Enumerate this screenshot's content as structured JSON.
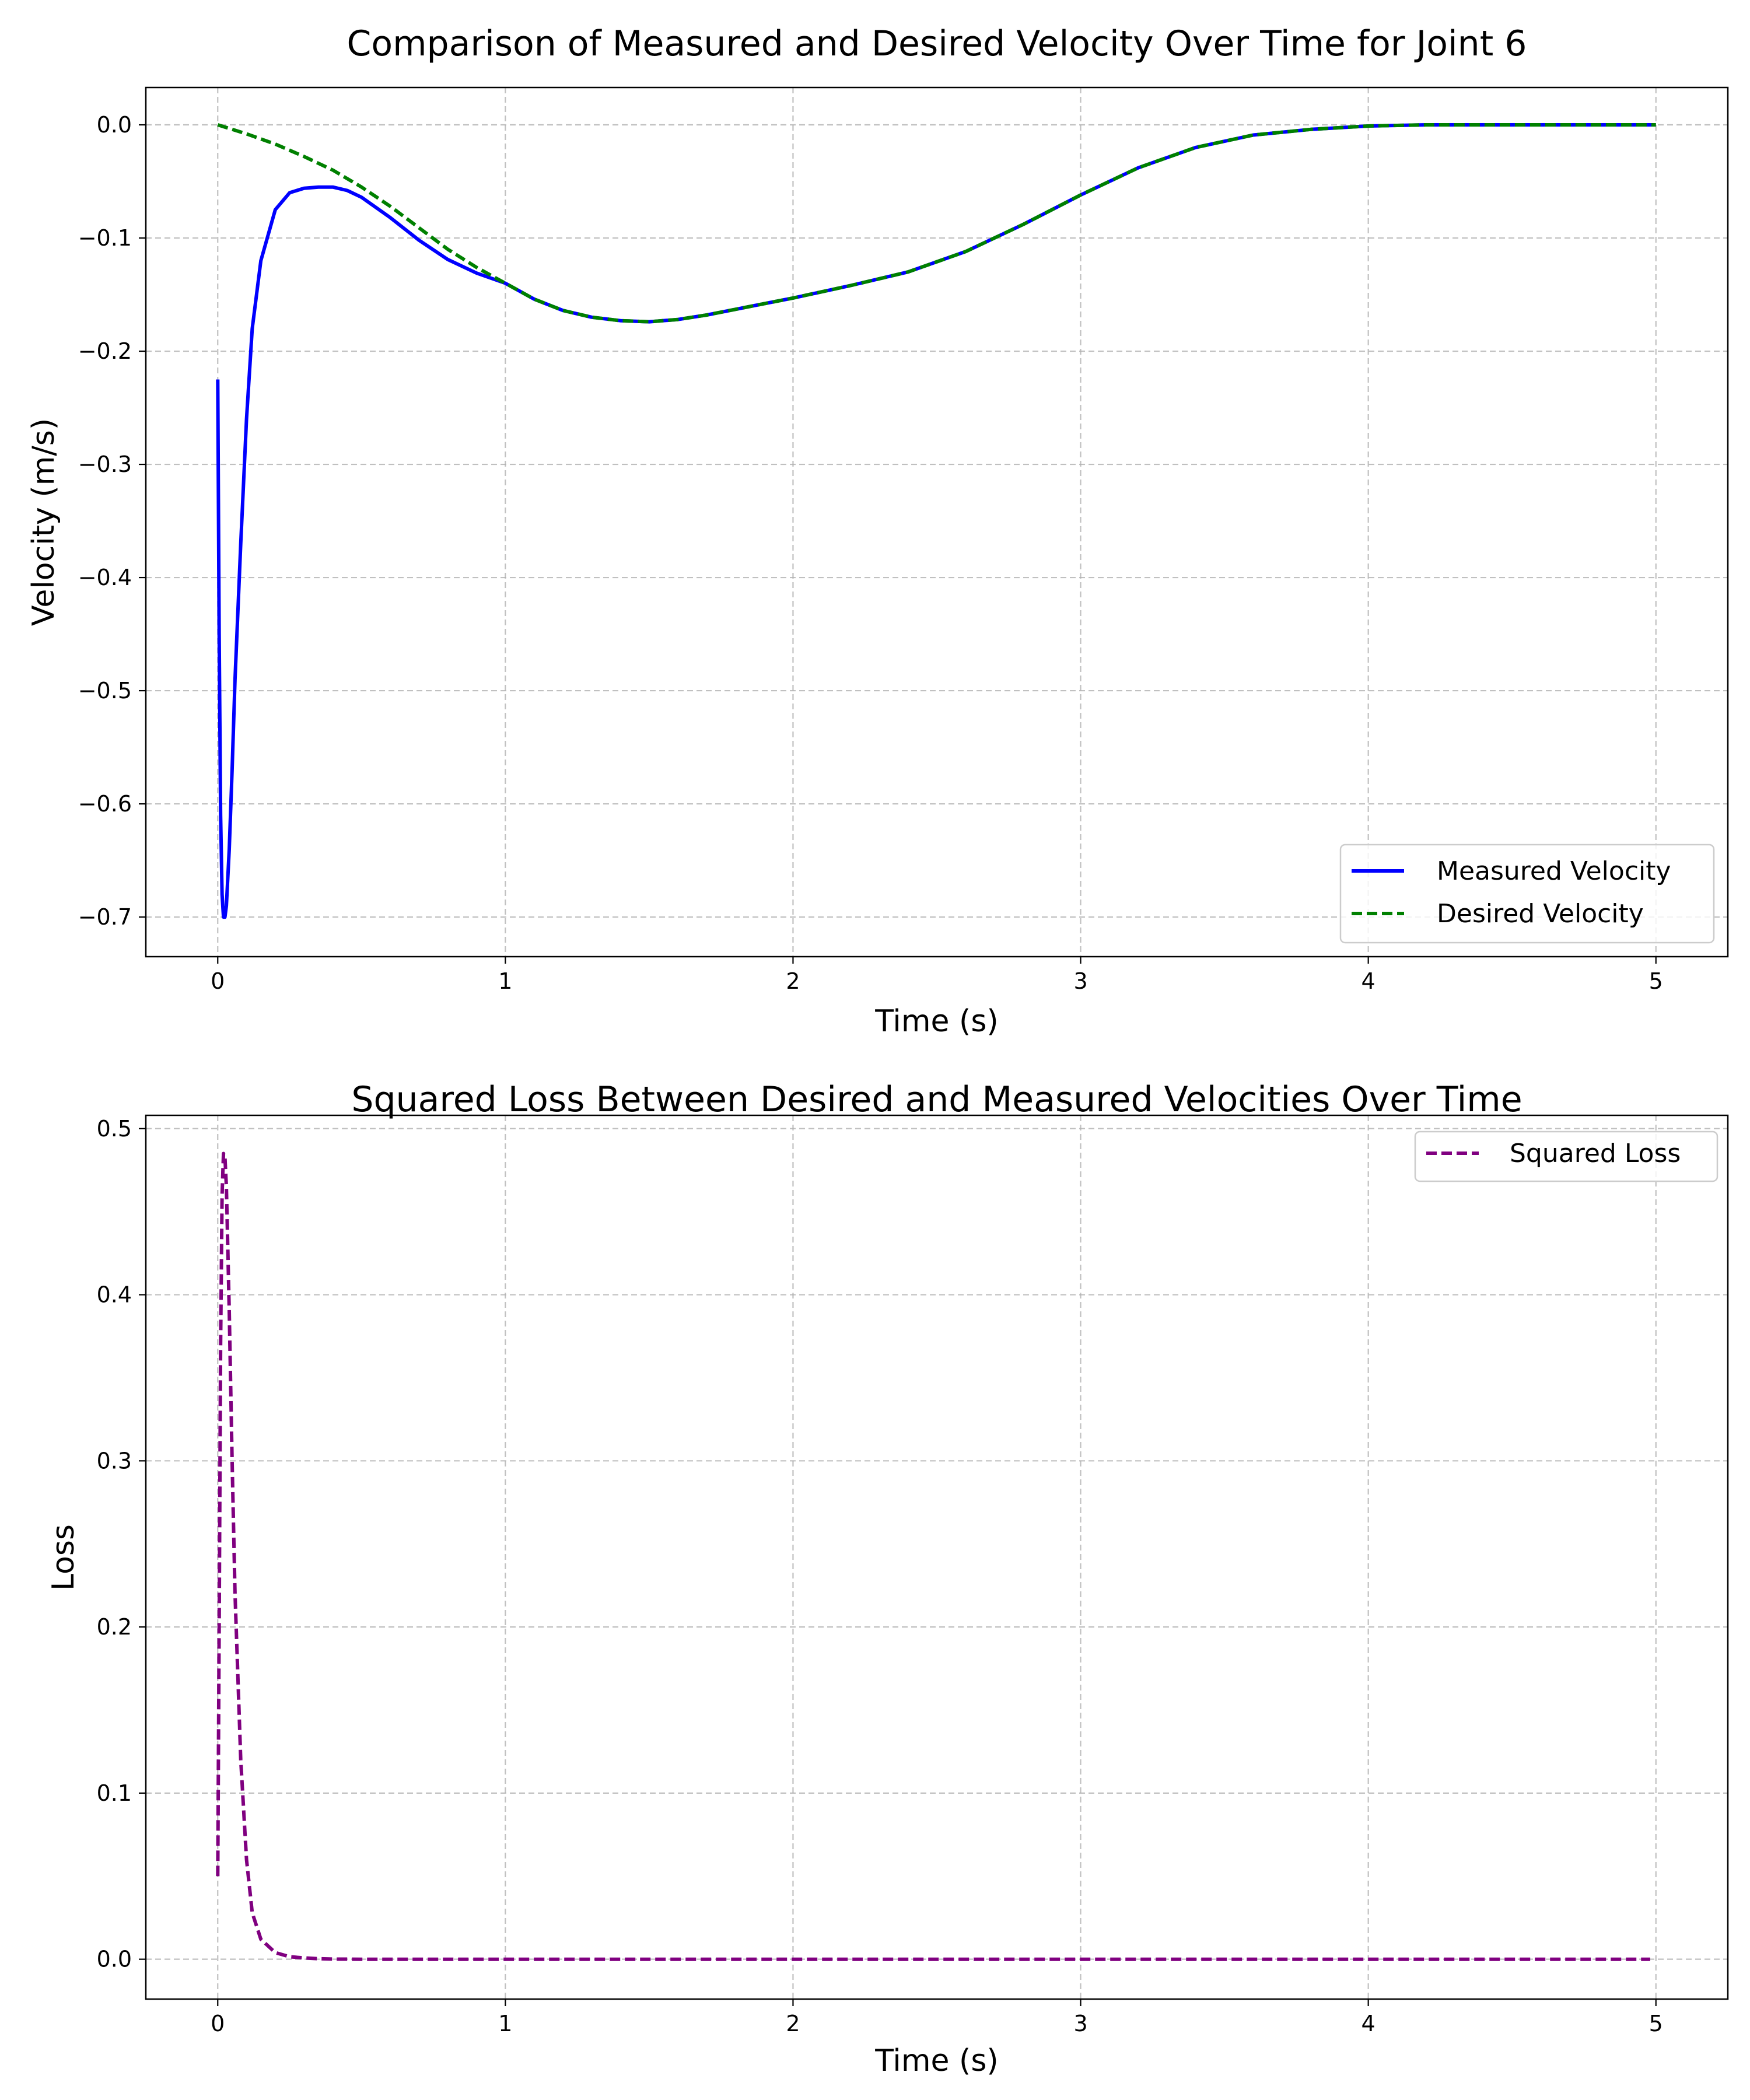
{
  "chart_data": [
    {
      "type": "line",
      "title": "Comparison of Measured and Desired Velocity Over Time for Joint 6",
      "xlabel": "Time (s)",
      "ylabel": "Velocity (m/s)",
      "xlim": [
        -0.25,
        5.25
      ],
      "ylim": [
        -0.735,
        0.033
      ],
      "xticks": [
        0,
        1,
        2,
        3,
        4,
        5
      ],
      "yticks": [
        0.0,
        -0.1,
        -0.2,
        -0.3,
        -0.4,
        -0.5,
        -0.6,
        -0.7
      ],
      "xtick_labels": [
        "0",
        "1",
        "2",
        "3",
        "4",
        "5"
      ],
      "ytick_labels": [
        "0.0",
        "−0.1",
        "−0.2",
        "−0.3",
        "−0.4",
        "−0.5",
        "−0.6",
        "−0.7"
      ],
      "grid": true,
      "legend_position": "lower-right",
      "series": [
        {
          "name": "Measured Velocity",
          "color": "#0000ff",
          "style": "solid",
          "x": [
            0,
            0.005,
            0.01,
            0.015,
            0.02,
            0.025,
            0.03,
            0.04,
            0.05,
            0.06,
            0.08,
            0.1,
            0.12,
            0.15,
            0.2,
            0.25,
            0.3,
            0.35,
            0.4,
            0.45,
            0.5,
            0.6,
            0.7,
            0.8,
            0.9,
            1.0,
            1.1,
            1.2,
            1.3,
            1.4,
            1.5,
            1.6,
            1.7,
            1.8,
            1.9,
            2.0,
            2.2,
            2.4,
            2.6,
            2.8,
            3.0,
            3.2,
            3.4,
            3.6,
            3.8,
            4.0,
            4.2,
            4.4,
            4.6,
            4.8,
            5.0
          ],
          "y": [
            -0.225,
            -0.45,
            -0.61,
            -0.68,
            -0.7,
            -0.7,
            -0.69,
            -0.64,
            -0.57,
            -0.49,
            -0.37,
            -0.26,
            -0.18,
            -0.12,
            -0.075,
            -0.06,
            -0.056,
            -0.055,
            -0.055,
            -0.058,
            -0.064,
            -0.082,
            -0.102,
            -0.119,
            -0.131,
            -0.14,
            -0.154,
            -0.164,
            -0.17,
            -0.173,
            -0.174,
            -0.172,
            -0.168,
            -0.163,
            -0.158,
            -0.153,
            -0.142,
            -0.13,
            -0.112,
            -0.088,
            -0.062,
            -0.038,
            -0.02,
            -0.009,
            -0.004,
            -0.001,
            0.0,
            0.0,
            0.0,
            0.0,
            0.0
          ]
        },
        {
          "name": "Desired Velocity",
          "color": "#008000",
          "style": "dashed",
          "x": [
            0,
            0.1,
            0.2,
            0.3,
            0.4,
            0.5,
            0.6,
            0.7,
            0.8,
            0.9,
            1.0,
            1.1,
            1.2,
            1.3,
            1.4,
            1.5,
            1.6,
            1.7,
            1.8,
            1.9,
            2.0,
            2.2,
            2.4,
            2.6,
            2.8,
            3.0,
            3.2,
            3.4,
            3.6,
            3.8,
            4.0,
            4.2,
            4.4,
            4.6,
            4.8,
            5.0
          ],
          "y": [
            0.0,
            -0.008,
            -0.017,
            -0.028,
            -0.04,
            -0.055,
            -0.072,
            -0.091,
            -0.11,
            -0.126,
            -0.14,
            -0.154,
            -0.164,
            -0.17,
            -0.173,
            -0.174,
            -0.172,
            -0.168,
            -0.163,
            -0.158,
            -0.153,
            -0.142,
            -0.13,
            -0.112,
            -0.088,
            -0.062,
            -0.038,
            -0.02,
            -0.009,
            -0.004,
            -0.001,
            0.0,
            0.0,
            0.0,
            0.0,
            0.0
          ]
        }
      ]
    },
    {
      "type": "line",
      "title": "Squared Loss Between Desired and Measured Velocities Over Time",
      "xlabel": "Time (s)",
      "ylabel": "Loss",
      "xlim": [
        -0.25,
        5.25
      ],
      "ylim": [
        -0.024,
        0.508
      ],
      "xticks": [
        0,
        1,
        2,
        3,
        4,
        5
      ],
      "yticks": [
        0.0,
        0.1,
        0.2,
        0.3,
        0.4,
        0.5
      ],
      "xtick_labels": [
        "0",
        "1",
        "2",
        "3",
        "4",
        "5"
      ],
      "ytick_labels": [
        "0.0",
        "0.1",
        "0.2",
        "0.3",
        "0.4",
        "0.5"
      ],
      "grid": true,
      "legend_position": "upper-right",
      "series": [
        {
          "name": "Squared Loss",
          "color": "#800080",
          "style": "dashed",
          "x": [
            0,
            0.005,
            0.01,
            0.015,
            0.02,
            0.025,
            0.03,
            0.04,
            0.05,
            0.06,
            0.08,
            0.1,
            0.12,
            0.15,
            0.2,
            0.25,
            0.3,
            0.35,
            0.4,
            0.5,
            0.6,
            1.0,
            2.0,
            3.0,
            4.0,
            4.98
          ],
          "y": [
            0.05,
            0.2,
            0.37,
            0.46,
            0.485,
            0.483,
            0.465,
            0.39,
            0.3,
            0.22,
            0.12,
            0.06,
            0.028,
            0.012,
            0.004,
            0.0015,
            0.0008,
            0.0003,
            0.0001,
            0.0,
            0.0,
            0.0,
            0.0,
            0.0,
            0.0,
            0.0
          ]
        }
      ]
    }
  ]
}
